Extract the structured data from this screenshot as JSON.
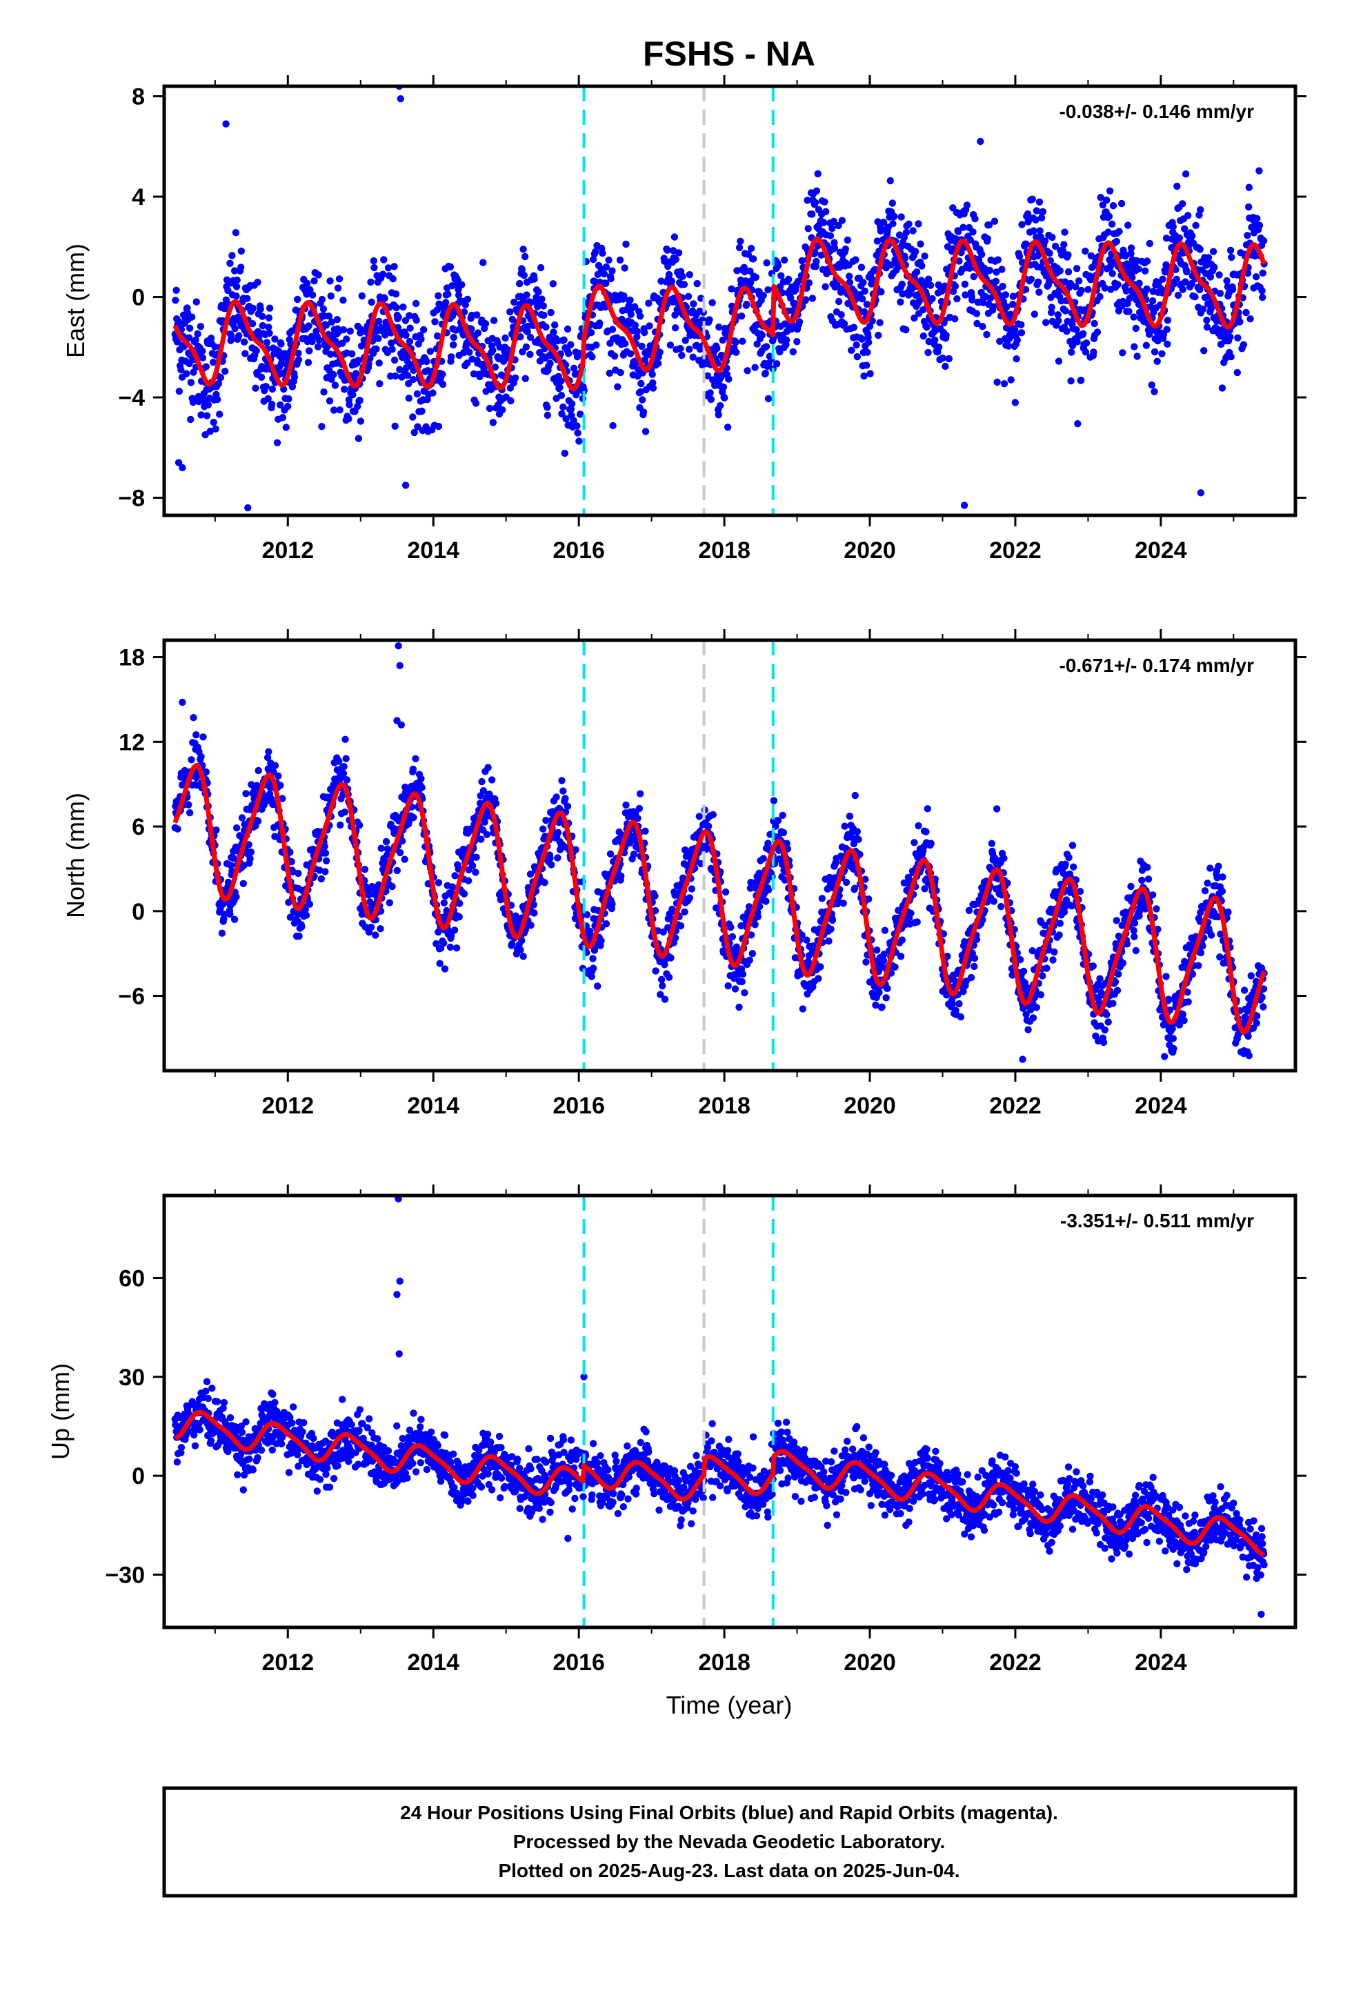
{
  "colors": {
    "final_orbits": "#0000ff",
    "model": "#ff0000",
    "event_dashed": "#00e5ee",
    "equipment_dashed": "#c8c8c8",
    "frame": "#000000"
  },
  "chart_data": {
    "type": "scatter",
    "title": "FSHS - NA",
    "xlabel": "Time (year)",
    "xlim": [
      2010.3,
      2025.85
    ],
    "x_ticks": [
      2012,
      2014,
      2016,
      2018,
      2020,
      2022,
      2024
    ],
    "x_tick_labels": [
      "2012",
      "2014",
      "2016",
      "2018",
      "2020",
      "2022",
      "2024"
    ],
    "data_start": 2010.45,
    "data_end": 2025.42,
    "event_lines": [
      {
        "x": 2016.07,
        "color": "cyan",
        "style": "dashed"
      },
      {
        "x": 2017.72,
        "color": "gray",
        "style": "dashed"
      },
      {
        "x": 2018.67,
        "color": "cyan",
        "style": "dashed"
      }
    ],
    "panels": [
      {
        "component": "east",
        "ylabel": "East (mm)",
        "ylim": [
          -8.7,
          8.4
        ],
        "y_ticks": [
          -8,
          -4,
          0,
          4,
          8
        ],
        "y_tick_labels": [
          "−8",
          "−4",
          "0",
          "4",
          "8"
        ],
        "rate_text": "-0.038+/- 0.146 mm/yr",
        "model": {
          "start_value": -1.8,
          "trend": -0.038,
          "amp1": 1.4,
          "phase1": 0.1,
          "amp2": 0.5,
          "phase2": 0.6,
          "steps": [
            {
              "x": 2016.07,
              "dy": 0.8
            },
            {
              "x": 2018.67,
              "dy": 2.0
            }
          ],
          "noise": 1.1
        },
        "outliers": [
          [
            2013.53,
            8.4
          ],
          [
            2013.55,
            7.9
          ],
          [
            2011.15,
            6.9
          ],
          [
            2021.52,
            6.2
          ],
          [
            2010.5,
            -6.6
          ],
          [
            2010.55,
            -6.8
          ],
          [
            2011.45,
            -8.4
          ],
          [
            2013.62,
            -7.5
          ],
          [
            2021.3,
            -8.3
          ],
          [
            2024.55,
            -7.8
          ]
        ]
      },
      {
        "component": "north",
        "ylabel": "North (mm)",
        "ylim": [
          -11.3,
          19.2
        ],
        "y_ticks": [
          -6,
          0,
          6,
          12,
          18
        ],
        "y_tick_labels": [
          "−6",
          "0",
          "6",
          "12",
          "18"
        ],
        "rate_text": "-0.671+/- 0.174 mm/yr",
        "model": {
          "start_value": 6.0,
          "trend": -0.671,
          "amp1": 4.3,
          "phase1": 0.44,
          "amp2": 0.9,
          "phase2": 0.2,
          "steps": [
            {
              "x": 2016.07,
              "dy": 0.0
            },
            {
              "x": 2018.67,
              "dy": 0.0
            }
          ],
          "noise": 1.2
        },
        "outliers": [
          [
            2013.52,
            18.8
          ],
          [
            2013.54,
            17.4
          ],
          [
            2013.5,
            13.5
          ],
          [
            2013.56,
            13.2
          ],
          [
            2010.55,
            14.8
          ],
          [
            2022.1,
            -10.5
          ],
          [
            2024.05,
            -10.3
          ]
        ]
      },
      {
        "component": "up",
        "ylabel": "Up (mm)",
        "ylim": [
          -46.0,
          85.0
        ],
        "y_ticks": [
          -30,
          0,
          30,
          60
        ],
        "y_tick_labels": [
          "−30",
          "0",
          "30",
          "60"
        ],
        "rate_text": "-3.351+/- 0.511 mm/yr",
        "model": {
          "start_value": 16.0,
          "trend": -3.351,
          "amp1": 4.2,
          "phase1": 0.62,
          "amp2": 1.0,
          "phase2": 0.1,
          "steps": [
            {
              "x": 2016.07,
              "dy": 5.0
            },
            {
              "x": 2017.72,
              "dy": 5.0
            },
            {
              "x": 2018.67,
              "dy": 5.0
            }
          ],
          "noise": 4.0
        },
        "outliers": [
          [
            2013.52,
            84.0
          ],
          [
            2013.54,
            59.0
          ],
          [
            2013.5,
            55.0
          ],
          [
            2013.53,
            37.0
          ],
          [
            2016.07,
            30.0
          ],
          [
            2015.85,
            -19.0
          ],
          [
            2025.38,
            -42.0
          ]
        ]
      }
    ]
  },
  "footer": {
    "line1": "24 Hour Positions Using Final Orbits (blue) and Rapid Orbits (magenta).",
    "line2": "Processed by the Nevada Geodetic Laboratory.",
    "line3": "Plotted on 2025-Aug-23. Last data on 2025-Jun-04."
  }
}
